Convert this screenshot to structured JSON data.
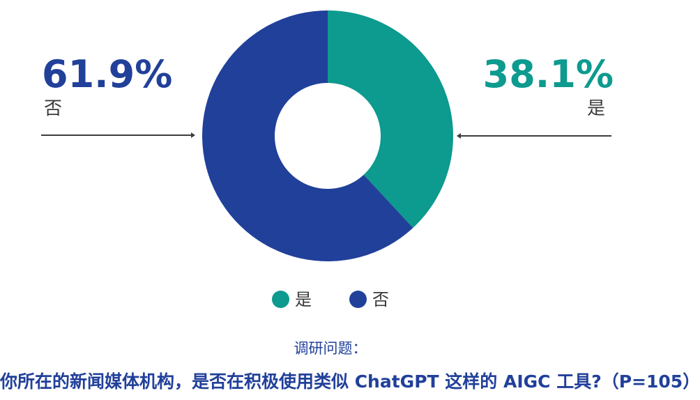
{
  "chart_data": {
    "type": "pie",
    "subtype": "donut",
    "title": "",
    "categories": [
      "是",
      "否"
    ],
    "values": [
      38.1,
      61.9
    ],
    "unit": "%",
    "colors": {
      "是": "#0D9A8F",
      "否": "#21409A"
    },
    "start_angle_deg": 0,
    "direction": "clockwise",
    "inner_radius_ratio": 0.42,
    "legend_position": "bottom",
    "legend": [
      "是",
      "否"
    ]
  },
  "annotations": {
    "left": {
      "value": "61.9%",
      "label": "否"
    },
    "right": {
      "value": "38.1%",
      "label": "是"
    }
  },
  "legend": {
    "items": [
      {
        "label": "是",
        "color": "#0D9A8F"
      },
      {
        "label": "否",
        "color": "#21409A"
      }
    ]
  },
  "caption": {
    "lead": "调研问题：",
    "question": "你所在的新闻媒体机构，是否在积极使用类似 ChatGPT 这样的 AIGC 工具?（P=105）"
  },
  "colors": {
    "teal": "#0D9A8F",
    "blue": "#21409A",
    "label_text": "#3A3A3A",
    "line": "#3D3D3D",
    "background": "#FFFFFF"
  }
}
